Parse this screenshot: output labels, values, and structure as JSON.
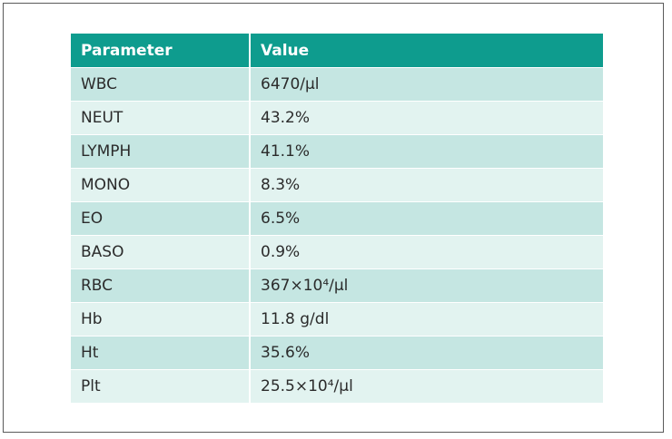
{
  "table": {
    "headers": [
      "Parameter",
      "Value"
    ],
    "rows": [
      {
        "parameter": "WBC",
        "value": "6470/μl"
      },
      {
        "parameter": "NEUT",
        "value": "43.2%"
      },
      {
        "parameter": "LYMPH",
        "value": "41.1%"
      },
      {
        "parameter": "MONO",
        "value": "8.3%"
      },
      {
        "parameter": "EO",
        "value": "6.5%"
      },
      {
        "parameter": "BASO",
        "value": "0.9%"
      },
      {
        "parameter": "RBC",
        "value": "367×10⁴/μl"
      },
      {
        "parameter": "Hb",
        "value": "11.8 g/dl"
      },
      {
        "parameter": "Ht",
        "value": "35.6%"
      },
      {
        "parameter": "Plt",
        "value": "25.5×10⁴/μl"
      }
    ]
  },
  "colors": {
    "header_bg": "#0e9c8e",
    "row_odd_bg": "#c5e6e2",
    "row_even_bg": "#e2f3f0"
  }
}
